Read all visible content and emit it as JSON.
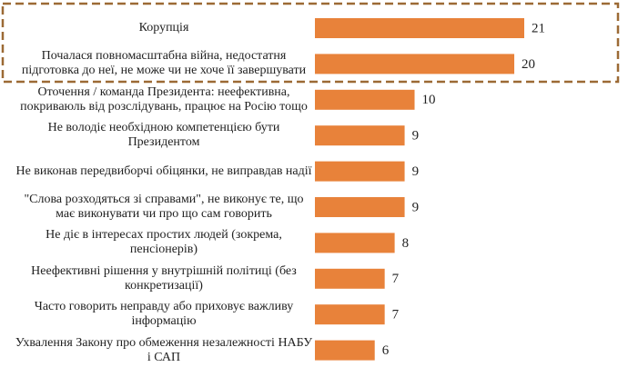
{
  "chart_data": {
    "type": "bar",
    "orientation": "horizontal",
    "color": "#e8823a",
    "categories": [
      "Корупція",
      "Почалася повномасштабна війна, недостатня підготовка до неї, не може чи не хоче її завершувати",
      "Оточення / команда Президента: неефективна, покриваюль від розслідувань, працює на Росію тощо",
      "Не володіє необхідною компетенцією бути Президентом",
      "Не виконав передвиборчі обіцянки, не виправдав надії",
      "\"Слова розходяться зі справами\", не виконує те, що має виконувати чи про що сам говорить",
      "Не діє в інтересах простих людей (зокрема, пенсіонерів)",
      "Неефективні рішення у внутрішній політиці (без конкретизації)",
      "Часто говорить неправду або приховує важливу інформацію",
      "Ухвалення Закону про обмеження незалежності НАБУ і САП"
    ],
    "values": [
      21,
      20,
      10,
      9,
      9,
      9,
      8,
      7,
      7,
      6
    ]
  }
}
